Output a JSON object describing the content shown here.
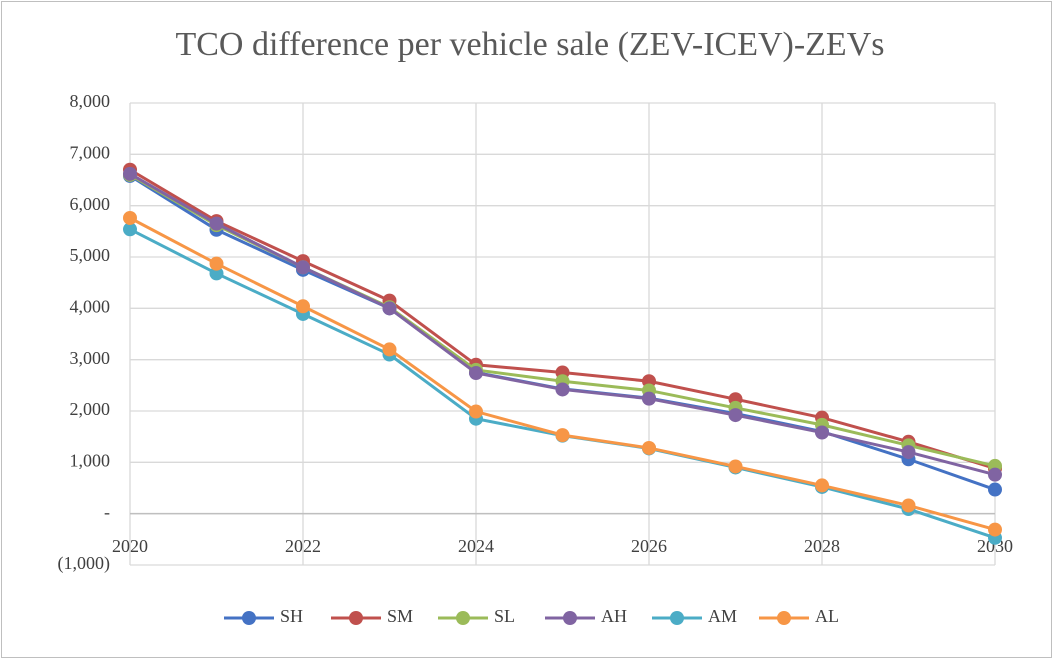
{
  "chart_data": {
    "type": "line",
    "title": "TCO difference per vehicle sale (ZEV-ICEV)-ZEVs",
    "x": [
      2020,
      2021,
      2022,
      2023,
      2024,
      2025,
      2026,
      2027,
      2028,
      2029,
      2030
    ],
    "xlim": [
      2020,
      2030
    ],
    "xticks": [
      2020,
      2022,
      2024,
      2026,
      2028,
      2030
    ],
    "ylim": [
      -1000,
      8000
    ],
    "yticks": [
      {
        "value": -1000,
        "label": "(1,000)"
      },
      {
        "value": 0,
        "label": "-"
      },
      {
        "value": 1000,
        "label": "1,000"
      },
      {
        "value": 2000,
        "label": "2,000"
      },
      {
        "value": 3000,
        "label": "3,000"
      },
      {
        "value": 4000,
        "label": "4,000"
      },
      {
        "value": 5000,
        "label": "5,000"
      },
      {
        "value": 6000,
        "label": "6,000"
      },
      {
        "value": 7000,
        "label": "7,000"
      },
      {
        "value": 8000,
        "label": "8,000"
      }
    ],
    "grid": true,
    "legend": "bottom",
    "series": [
      {
        "name": "SH",
        "color": "#4472c4",
        "values": [
          6580,
          5530,
          4750,
          4000,
          2750,
          2430,
          2250,
          1950,
          1600,
          1060,
          470
        ]
      },
      {
        "name": "SM",
        "color": "#c0504d",
        "values": [
          6700,
          5700,
          4920,
          4150,
          2900,
          2750,
          2580,
          2230,
          1870,
          1400,
          880
        ]
      },
      {
        "name": "SL",
        "color": "#9bbb59",
        "values": [
          6600,
          5620,
          4800,
          4020,
          2800,
          2580,
          2400,
          2060,
          1730,
          1330,
          930
        ]
      },
      {
        "name": "AH",
        "color": "#8064a2",
        "values": [
          6620,
          5650,
          4800,
          4000,
          2740,
          2420,
          2240,
          1920,
          1580,
          1200,
          760
        ]
      },
      {
        "name": "AM",
        "color": "#4bacc6",
        "values": [
          5540,
          4680,
          3890,
          3100,
          1850,
          1520,
          1270,
          900,
          520,
          90,
          -470
        ]
      },
      {
        "name": "AL",
        "color": "#f79646",
        "values": [
          5760,
          4870,
          4040,
          3200,
          1990,
          1530,
          1280,
          920,
          550,
          160,
          -310
        ]
      }
    ]
  }
}
